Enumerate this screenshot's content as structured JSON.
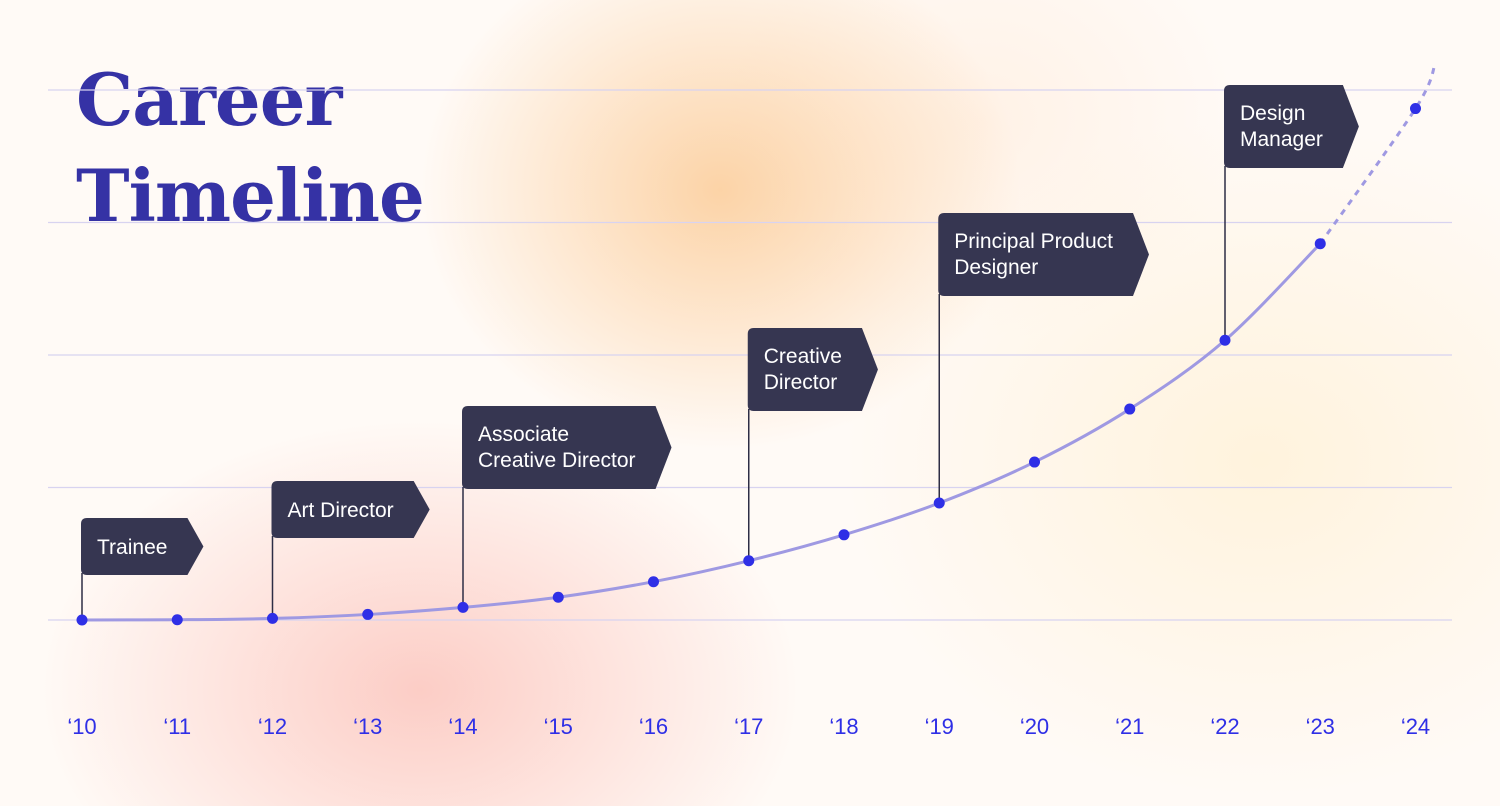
{
  "title": "Career\nTimeline",
  "colors": {
    "title": "#3532a5",
    "curve": "#9f99e2",
    "point": "#2f2fe6",
    "flag": "#363651",
    "flag_text": "#ffffff",
    "tick_label": "#2f2fe6",
    "grid": "#d8d3f0"
  },
  "chart_data": {
    "type": "line",
    "title": "Career Timeline",
    "xlabel": "",
    "ylabel": "",
    "x": [
      "‘10",
      "‘11",
      "‘12",
      "‘13",
      "‘14",
      "‘15",
      "‘16",
      "‘17",
      "‘18",
      "‘19",
      "‘20",
      "‘21",
      "‘22",
      "‘23",
      "‘24"
    ],
    "values": [
      0,
      0.2,
      1.2,
      4.2,
      9.5,
      17.2,
      28.9,
      44.7,
      64.3,
      88.3,
      119.2,
      159.2,
      211.1,
      284.0,
      386.0
    ],
    "ylim": [
      0,
      400
    ],
    "grid": true,
    "grid_lines": 5,
    "legend": "none",
    "dashed_from_index": 13,
    "milestones": [
      {
        "x_index": 0,
        "label_lines": [
          "Trainee"
        ]
      },
      {
        "x_index": 2,
        "label_lines": [
          "Art Director"
        ]
      },
      {
        "x_index": 4,
        "label_lines": [
          "Associate",
          "Creative Director"
        ]
      },
      {
        "x_index": 7,
        "label_lines": [
          "Creative",
          "Director"
        ]
      },
      {
        "x_index": 9,
        "label_lines": [
          "Principal Product",
          "Designer"
        ]
      },
      {
        "x_index": 12,
        "label_lines": [
          "Design",
          "Manager"
        ]
      }
    ]
  }
}
